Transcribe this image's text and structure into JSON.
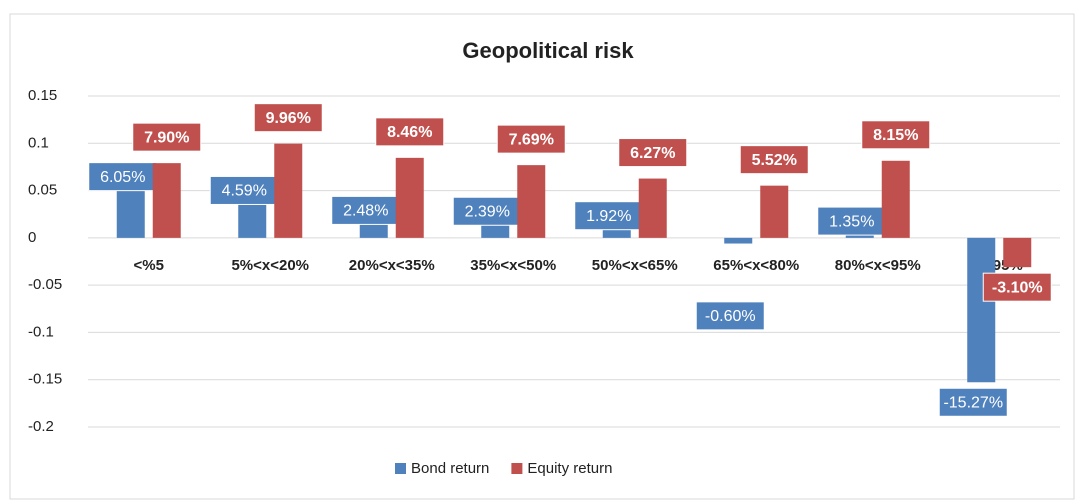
{
  "chart_data": {
    "type": "bar",
    "title": "Geopolitical risk",
    "categories": [
      "<%5",
      "5%<x<20%",
      "20%<x<35%",
      "35%<x<50%",
      "50%<x<65%",
      "65%<x<80%",
      "80%<x<95%",
      "x>95%"
    ],
    "series": [
      {
        "name": "Bond return",
        "color": "#4f81bd",
        "values": [
          0.0605,
          0.0459,
          0.0248,
          0.0239,
          0.0192,
          -0.006,
          0.0135,
          -0.1527
        ],
        "value_labels": [
          "6.05%",
          "4.59%",
          "2.48%",
          "2.39%",
          "1.92%",
          "-0.60%",
          "1.35%",
          "-15.27%"
        ]
      },
      {
        "name": "Equity return",
        "color": "#c0504d",
        "values": [
          0.079,
          0.0996,
          0.0846,
          0.0769,
          0.0627,
          0.0552,
          0.0815,
          -0.031
        ],
        "value_labels": [
          "7.90%",
          "9.96%",
          "8.46%",
          "7.69%",
          "6.27%",
          "5.52%",
          "8.15%",
          "-3.10%"
        ]
      }
    ],
    "ylim": [
      -0.2,
      0.15
    ],
    "yticks": [
      -0.2,
      -0.15,
      -0.1,
      -0.05,
      0,
      0.05,
      0.1,
      0.15
    ],
    "grid": true,
    "legend": "bottom"
  }
}
